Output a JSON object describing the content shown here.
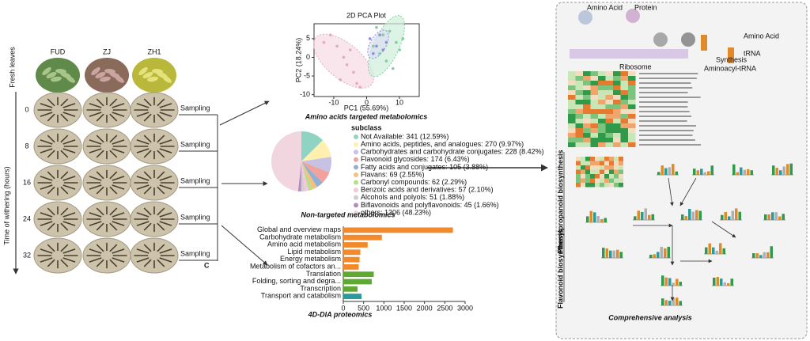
{
  "left": {
    "varieties": [
      "FUD",
      "ZJ",
      "ZH1"
    ],
    "fresh_label": "Fresh leaves",
    "time_axis_label": "Time of withering (hours)",
    "times": [
      "0",
      "8",
      "16",
      "24",
      "32"
    ],
    "sampling_label": "Sampling",
    "panel_letter": "C"
  },
  "pca": {
    "type": "scatter",
    "title": "2D PCA Plot",
    "x_label": "PC1 (55.69%)",
    "y_label": "PC2 (18.24%)",
    "xlim": [
      -16,
      16
    ],
    "ylim": [
      -10.5,
      9
    ],
    "xticks": [
      -10,
      0,
      10
    ],
    "yticks": [
      -10,
      -5,
      0,
      5
    ],
    "series": [
      {
        "color": "#e8a9bf",
        "x": [
          -13,
          -11,
          -9,
          -7,
          -6,
          -4,
          -8,
          -3,
          -2,
          -5
        ],
        "y": [
          4,
          6,
          3,
          0,
          -2,
          -4,
          -6,
          -7,
          -8,
          2
        ]
      },
      {
        "color": "#7fcf9f",
        "x": [
          3,
          5,
          7,
          9,
          10,
          6,
          8,
          4,
          11,
          2
        ],
        "y": [
          8,
          6,
          7,
          4,
          2,
          -1,
          -3,
          1,
          5,
          3
        ]
      },
      {
        "color": "#8d8fd8",
        "x": [
          1,
          3,
          4,
          5,
          6,
          2
        ],
        "y": [
          5,
          3,
          6,
          2,
          4,
          1
        ]
      }
    ],
    "caption": "Amino acids targeted metabolomics"
  },
  "pie": {
    "type": "pie",
    "legend_title": "subclass",
    "labels": [
      "Not Available: 341 (12.59%)",
      "Amino acids, peptides, and analogues: 270 (9.97%)",
      "Carbohydrates and carbohydrate conjugates: 228 (8.42%)",
      "Flavonoid glycosides: 174 (6.43%)",
      "Fatty acids and conjugates: 105 (3.88%)",
      "Flavans: 69 (2.55%)",
      "Carbonyl compounds: 62 (2.29%)",
      "Benzoic acids and derivatives: 57 (2.10%)",
      "Alcohols and polyols: 51 (1.88%)",
      "Biflavonoids and polyflavonoids: 45 (1.66%)",
      "others: 1306 (48.23%)"
    ],
    "values": [
      12.59,
      9.97,
      8.42,
      6.43,
      3.88,
      2.55,
      2.29,
      2.1,
      1.88,
      1.66,
      48.23
    ],
    "colors": [
      "#8fd3c3",
      "#fff0b0",
      "#c7c1e4",
      "#f2a29c",
      "#8fb1d8",
      "#f7c07a",
      "#b8dd8c",
      "#f6c6da",
      "#cfcfcf",
      "#b689c0",
      "#f2d6df"
    ],
    "caption": "Non-targeted metabolomics"
  },
  "proteomics": {
    "type": "bar",
    "categories": [
      "Global and overview maps",
      "Carbohydrate metabolism",
      "Amino acid metabolism",
      "Lipid metabolism",
      "Energy metabolism",
      "Metabolism of cofactors an...",
      "Translation",
      "Folding, sorting and degra...",
      "Transcription",
      "Transport and catabolism"
    ],
    "values": [
      2700,
      950,
      600,
      420,
      400,
      380,
      750,
      700,
      350,
      450
    ],
    "colors": [
      "#f28a2c",
      "#f28a2c",
      "#f28a2c",
      "#f28a2c",
      "#f28a2c",
      "#f28a2c",
      "#5fa831",
      "#5fa831",
      "#5fa831",
      "#2a9a9a"
    ],
    "xlim": [
      0,
      3000
    ],
    "xticks": [
      0,
      500,
      1000,
      1500,
      2000,
      2500,
      3000
    ],
    "caption": "4D-DIA  proteomics"
  },
  "right": {
    "amino_acid": "Amino Acid",
    "protein": "Protein",
    "synthesis": "Synthesis",
    "ribosome": "Ribosome",
    "trna": "tRNA",
    "aminoacyl": "Aminoacyl-tRNA",
    "phenylpropanoid": "Phenylpropanoid biosynthesis",
    "flavonoid": "Flavonoid biosynthesis",
    "caption": "Comprehensive analysis"
  }
}
